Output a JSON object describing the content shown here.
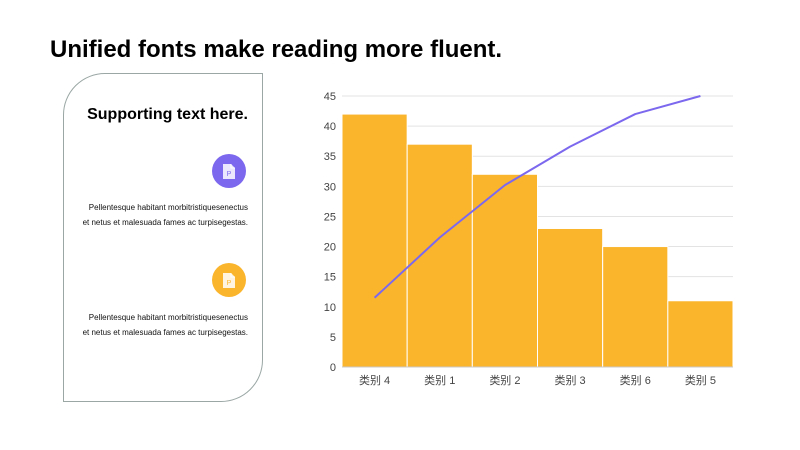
{
  "slide": {
    "title": "Unified fonts make reading more fluent."
  },
  "card": {
    "title": "Supporting text here.",
    "items": [
      {
        "icon": "document-icon",
        "icon_letter": "P",
        "color": "#7b68ee",
        "line1": "Pellentesque habitant morbitristiquesenectus",
        "line2": "et netus et malesuada fames ac turpisegestas."
      },
      {
        "icon": "document-icon",
        "icon_letter": "P",
        "color": "#fbb52d",
        "line1": "Pellentesque habitant morbitristiquesenectus",
        "line2": "et netus et malesuada fames ac turpisegestas."
      }
    ]
  },
  "chart_data": {
    "type": "bar",
    "categories": [
      "类别 4",
      "类别 1",
      "类别 2",
      "类别 3",
      "类别 6",
      "类别 5"
    ],
    "series": [
      {
        "type": "bar",
        "values": [
          42,
          37,
          32,
          23,
          20,
          11
        ],
        "color": "#fbb52d"
      },
      {
        "type": "line",
        "values": [
          11.5,
          21.5,
          30.2,
          36.6,
          42,
          45
        ],
        "color": "#7b68ee"
      }
    ],
    "ylim": [
      0,
      45
    ],
    "yticks": [
      0,
      5,
      10,
      15,
      20,
      25,
      30,
      35,
      40,
      45
    ],
    "grid": true,
    "legend": "none"
  }
}
